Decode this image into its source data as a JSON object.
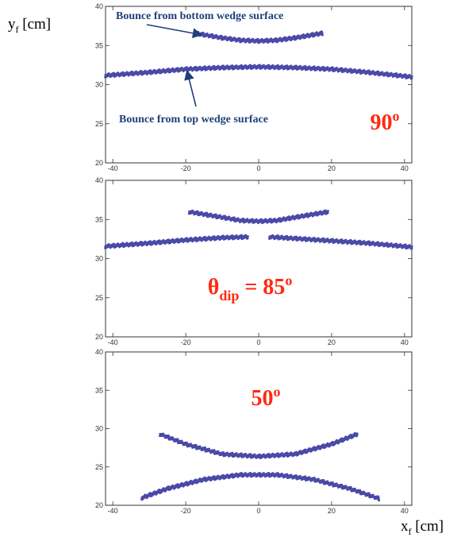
{
  "x_axis_label": {
    "main": "x",
    "sub": "f",
    "unit": " [cm]"
  },
  "y_axis_label": {
    "main": "y",
    "sub": "f",
    "unit": " [cm]"
  },
  "annotations": {
    "bottom_bounce": "Bounce from bottom wedge surface",
    "top_bounce": "Bounce from top wedge surface"
  },
  "colors": {
    "points": "#4a4aa8",
    "label": "#ff2a10",
    "annotation": "#1f3f7a"
  },
  "chart_data": [
    {
      "type": "scatter",
      "panel_label": {
        "main": "90",
        "sup": "o"
      },
      "xlim": [
        -42,
        42
      ],
      "ylim": [
        20,
        40
      ],
      "xticks": [
        -40,
        -20,
        0,
        20,
        40
      ],
      "yticks": [
        20,
        25,
        30,
        35,
        40
      ],
      "series": [
        {
          "shape": "arc",
          "x": [
            -17.5,
            -10,
            -5,
            0,
            5,
            10,
            17.5
          ],
          "y": [
            36.6,
            36.0,
            35.7,
            35.6,
            35.7,
            36.0,
            36.6
          ]
        },
        {
          "shape": "arc",
          "x": [
            -42,
            -30,
            -20,
            -10,
            0,
            10,
            20,
            30,
            42
          ],
          "y": [
            31.2,
            31.6,
            32.0,
            32.2,
            32.3,
            32.2,
            32.0,
            31.6,
            31.0
          ]
        }
      ]
    },
    {
      "type": "scatter",
      "panel_label": {
        "main": "θ",
        "sub": "dip",
        "eq": " = 85",
        "sup": "o"
      },
      "xlim": [
        -42,
        42
      ],
      "ylim": [
        20,
        40
      ],
      "xticks": [
        -40,
        -20,
        0,
        20,
        40
      ],
      "yticks": [
        20,
        25,
        30,
        35,
        40
      ],
      "series": [
        {
          "shape": "arc",
          "x": [
            -19,
            -10,
            -5,
            0,
            5,
            10,
            19
          ],
          "y": [
            36.0,
            35.3,
            34.9,
            34.8,
            34.9,
            35.3,
            36.0
          ]
        },
        {
          "shape": "arc",
          "x": [
            -42,
            -30,
            -20,
            -10,
            -3
          ],
          "y": [
            31.6,
            32.0,
            32.4,
            32.7,
            32.8
          ]
        },
        {
          "shape": "arc",
          "x": [
            3,
            10,
            20,
            30,
            42
          ],
          "y": [
            32.8,
            32.6,
            32.3,
            32.0,
            31.5
          ]
        }
      ]
    },
    {
      "type": "scatter",
      "panel_label": {
        "main": "50",
        "sup": "o"
      },
      "xlim": [
        -42,
        42
      ],
      "ylim": [
        20,
        40
      ],
      "xticks": [
        -40,
        -20,
        0,
        20,
        40
      ],
      "yticks": [
        20,
        25,
        30,
        35,
        40
      ],
      "series": [
        {
          "shape": "arc",
          "x": [
            -27,
            -20,
            -10,
            0,
            10,
            20,
            27
          ],
          "y": [
            29.3,
            28.0,
            26.7,
            26.4,
            26.7,
            28.0,
            29.3
          ]
        },
        {
          "shape": "arc",
          "x": [
            -32,
            -25,
            -15,
            -5,
            0,
            5,
            15,
            25,
            33
          ],
          "y": [
            21.0,
            22.2,
            23.4,
            24.0,
            24.0,
            24.0,
            23.4,
            22.2,
            20.9
          ]
        }
      ]
    }
  ]
}
